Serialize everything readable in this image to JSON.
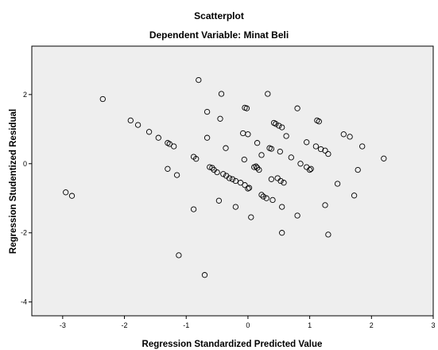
{
  "chart_data": {
    "type": "scatter",
    "title": "Scatterplot",
    "subtitle": "Dependent Variable: Minat Beli",
    "xlabel": "Regression Standardized Predicted Value",
    "ylabel": "Regression Studentized Residual",
    "xlim": [
      -3.5,
      3.0
    ],
    "ylim": [
      -4.4,
      3.4
    ],
    "xticks": [
      "-3",
      "-2",
      "-1",
      "0",
      "1",
      "2",
      "3"
    ],
    "yticks": [
      "-4",
      "-2",
      "0",
      "2"
    ],
    "grid": false,
    "colors": {
      "plot_bg": "#eeeeee",
      "marker": "#000000"
    },
    "points": [
      [
        -2.95,
        -0.83
      ],
      [
        -2.85,
        -0.93
      ],
      [
        -2.35,
        1.87
      ],
      [
        -1.9,
        1.25
      ],
      [
        -1.78,
        1.12
      ],
      [
        -1.6,
        0.92
      ],
      [
        -1.45,
        0.75
      ],
      [
        -1.3,
        0.6
      ],
      [
        -1.27,
        0.57
      ],
      [
        -1.2,
        0.5
      ],
      [
        -1.3,
        -0.15
      ],
      [
        -1.15,
        -0.33
      ],
      [
        -1.12,
        -2.65
      ],
      [
        -0.88,
        -1.32
      ],
      [
        -0.88,
        0.2
      ],
      [
        -0.84,
        0.14
      ],
      [
        -0.8,
        2.42
      ],
      [
        -0.7,
        -3.22
      ],
      [
        -0.66,
        1.5
      ],
      [
        -0.66,
        0.75
      ],
      [
        -0.62,
        -0.1
      ],
      [
        -0.58,
        -0.12
      ],
      [
        -0.55,
        -0.18
      ],
      [
        -0.5,
        -0.25
      ],
      [
        -0.45,
        1.3
      ],
      [
        -0.43,
        2.02
      ],
      [
        -0.47,
        -1.07
      ],
      [
        -0.4,
        -0.3
      ],
      [
        -0.36,
        0.45
      ],
      [
        -0.35,
        -0.35
      ],
      [
        -0.3,
        -0.42
      ],
      [
        -0.25,
        -0.45
      ],
      [
        -0.2,
        -0.5
      ],
      [
        -0.2,
        -1.25
      ],
      [
        -0.12,
        -0.55
      ],
      [
        -0.05,
        -0.62
      ],
      [
        -0.08,
        0.88
      ],
      [
        -0.06,
        0.12
      ],
      [
        -0.05,
        1.62
      ],
      [
        -0.02,
        1.6
      ],
      [
        0.0,
        0.85
      ],
      [
        0.0,
        -0.72
      ],
      [
        0.02,
        -0.7
      ],
      [
        0.05,
        -1.55
      ],
      [
        0.1,
        -0.1
      ],
      [
        0.13,
        -0.08
      ],
      [
        0.15,
        0.6
      ],
      [
        0.15,
        -0.12
      ],
      [
        0.18,
        -0.18
      ],
      [
        0.22,
        0.25
      ],
      [
        0.22,
        -0.9
      ],
      [
        0.25,
        -0.95
      ],
      [
        0.3,
        -1.0
      ],
      [
        0.32,
        2.02
      ],
      [
        0.35,
        0.45
      ],
      [
        0.38,
        0.43
      ],
      [
        0.38,
        -0.45
      ],
      [
        0.4,
        -1.05
      ],
      [
        0.42,
        1.18
      ],
      [
        0.45,
        1.15
      ],
      [
        0.48,
        -0.42
      ],
      [
        0.5,
        1.1
      ],
      [
        0.52,
        0.35
      ],
      [
        0.53,
        -0.5
      ],
      [
        0.55,
        1.05
      ],
      [
        0.58,
        -0.55
      ],
      [
        0.55,
        -1.25
      ],
      [
        0.55,
        -2.0
      ],
      [
        0.62,
        0.8
      ],
      [
        0.7,
        0.18
      ],
      [
        0.8,
        1.6
      ],
      [
        0.8,
        -1.5
      ],
      [
        0.85,
        0.0
      ],
      [
        0.95,
        0.62
      ],
      [
        0.95,
        -0.1
      ],
      [
        1.0,
        -0.18
      ],
      [
        1.02,
        -0.15
      ],
      [
        1.1,
        0.5
      ],
      [
        1.12,
        1.25
      ],
      [
        1.15,
        1.22
      ],
      [
        1.18,
        0.42
      ],
      [
        1.25,
        0.38
      ],
      [
        1.25,
        -1.2
      ],
      [
        1.3,
        0.28
      ],
      [
        1.3,
        -2.05
      ],
      [
        1.45,
        -0.58
      ],
      [
        1.55,
        0.85
      ],
      [
        1.65,
        0.78
      ],
      [
        1.72,
        -0.92
      ],
      [
        1.78,
        -0.18
      ],
      [
        1.85,
        0.5
      ],
      [
        2.2,
        0.15
      ]
    ]
  }
}
